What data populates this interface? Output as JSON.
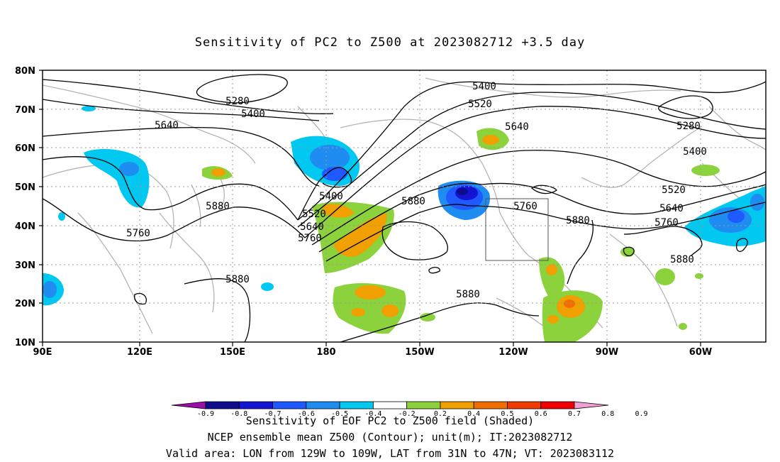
{
  "title": "Sensitivity of PC2 to Z500 at 2023082712 +3.5 day",
  "map": {
    "lat_labels": [
      "80N",
      "70N",
      "60N",
      "50N",
      "40N",
      "30N",
      "20N",
      "10N"
    ],
    "lon_labels": [
      "90E",
      "120E",
      "150E",
      "180",
      "150W",
      "120W",
      "90W",
      "60W"
    ],
    "contour_labels": [
      {
        "text": "5280"
      },
      {
        "text": "5400"
      },
      {
        "text": "5640"
      },
      {
        "text": "5400"
      },
      {
        "text": "5520"
      },
      {
        "text": "5640"
      },
      {
        "text": "5280"
      },
      {
        "text": "5400"
      },
      {
        "text": "5520"
      },
      {
        "text": "5640"
      },
      {
        "text": "5760"
      },
      {
        "text": "5880"
      },
      {
        "text": "5880"
      },
      {
        "text": "5760"
      },
      {
        "text": "5880"
      },
      {
        "text": "5400"
      },
      {
        "text": "5520"
      },
      {
        "text": "5640"
      },
      {
        "text": "5760"
      },
      {
        "text": "5880"
      },
      {
        "text": "5880"
      },
      {
        "text": "5760"
      }
    ],
    "valid_box": {
      "lon_from": "129W",
      "lon_to": "109W",
      "lat_from": "31N",
      "lat_to": "47N"
    }
  },
  "colorbar": {
    "colors": [
      "#9b0fa8",
      "#0c0c8c",
      "#1414d2",
      "#1e5aff",
      "#1e8cf0",
      "#00c8f0",
      "#ffffff",
      "#8cd23c",
      "#f0a000",
      "#f06e00",
      "#f03c00",
      "#f00000",
      "#f0a0d2"
    ],
    "ticks": [
      "-0.9",
      "-0.8",
      "-0.7",
      "-0.6",
      "-0.5",
      "-0.4",
      "-0.2",
      "0.2",
      "0.4",
      "0.5",
      "0.6",
      "0.7",
      "0.8",
      "0.9"
    ]
  },
  "footer": {
    "line1": "Sensitivity of EOF PC2 to Z500 field (Shaded)",
    "line2": "NCEP ensemble mean Z500 (Contour); unit(m); IT:2023082712",
    "line3": "Valid area: LON from 129W to 109W, LAT from 31N to 47N; VT: 2023083112"
  }
}
